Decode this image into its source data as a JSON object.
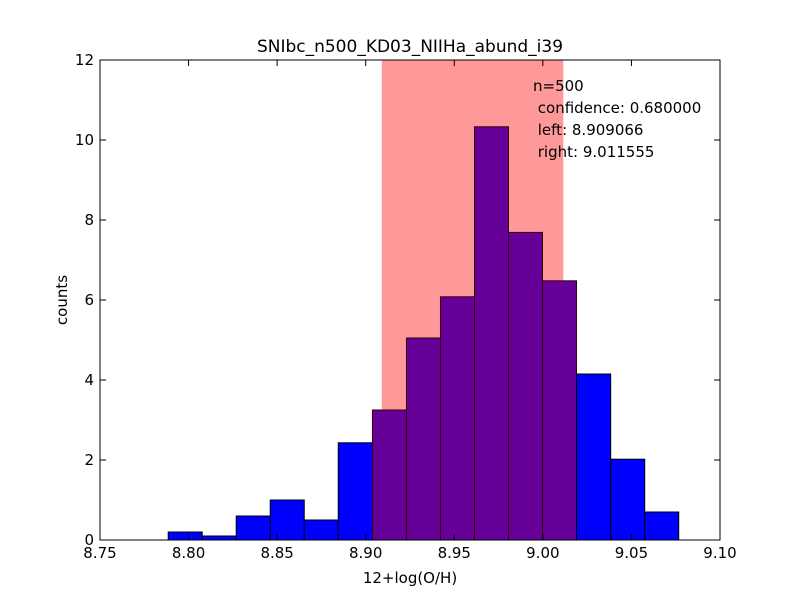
{
  "chart_data": {
    "type": "bar",
    "title": "SNIbc_n500_KD03_NIIHa_abund_i39",
    "xlabel": "12+log(O/H)",
    "ylabel": "counts",
    "xlim": [
      8.75,
      9.1
    ],
    "ylim": [
      0,
      12
    ],
    "xticks": [
      8.75,
      8.8,
      8.85,
      8.9,
      8.95,
      9.0,
      9.05,
      9.1
    ],
    "xtick_labels": [
      "8.75",
      "8.80",
      "8.85",
      "8.90",
      "8.95",
      "9.00",
      "9.05",
      "9.10"
    ],
    "yticks": [
      0,
      2,
      4,
      6,
      8,
      10,
      12
    ],
    "ytick_labels": [
      "0",
      "2",
      "4",
      "6",
      "8",
      "10",
      "12"
    ],
    "bins": {
      "edges": [
        8.7885,
        8.8077,
        8.8269,
        8.8461,
        8.8653,
        8.8845,
        8.9038,
        8.923,
        8.9422,
        8.9614,
        8.9806,
        8.9998,
        9.019,
        9.0383,
        9.0575,
        9.0767
      ],
      "values": [
        0.2,
        0.1,
        0.6,
        1.0,
        0.5,
        2.43,
        3.25,
        5.05,
        6.08,
        10.33,
        7.69,
        6.48,
        4.15,
        2.02,
        0.7
      ]
    },
    "confidence_interval": {
      "left": 8.909066,
      "right": 9.011555,
      "color": "#ff9999"
    },
    "annotation_lines": [
      "n=500",
      " confidence: 0.680000",
      " left: 8.909066",
      " right: 9.011555"
    ],
    "colors": {
      "bar": "#0000ff",
      "bar_in_interval": "#660099",
      "bar_edge": "#000000"
    },
    "grid": false
  }
}
